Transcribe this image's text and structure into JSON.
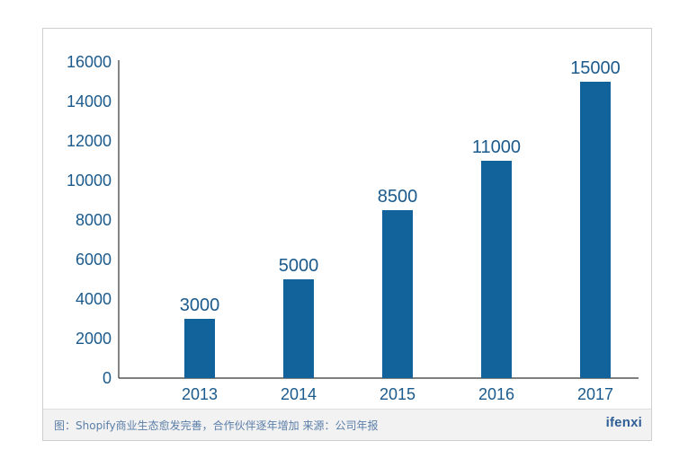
{
  "chart_data": {
    "type": "bar",
    "categories": [
      "2013",
      "2014",
      "2015",
      "2016",
      "2017"
    ],
    "values": [
      3000,
      5000,
      8500,
      11000,
      15000
    ],
    "data_labels": [
      "3000",
      "5000",
      "8500",
      "11000",
      "15000"
    ],
    "y_ticks": [
      "0",
      "2000",
      "4000",
      "6000",
      "8000",
      "10000",
      "12000",
      "14000",
      "16000"
    ],
    "ylim": [
      0,
      16000
    ],
    "title": "",
    "xlabel": "",
    "ylabel": "",
    "grid": false,
    "bar_color": "#12629b",
    "label_color": "#1b5a8c"
  },
  "footer": {
    "caption": "图：Shopify商业生态愈发完善，合作伙伴逐年增加  来源：公司年报",
    "logo": "ifenxi"
  }
}
